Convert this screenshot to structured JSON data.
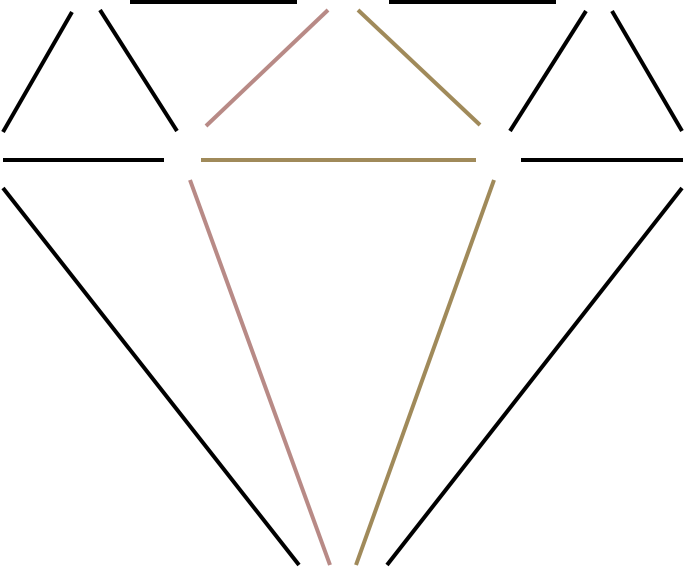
{
  "figure": {
    "subject": "diamond-gem-outline",
    "colors": {
      "outline": "#000000",
      "facet_left": "#b88a86",
      "facet_right": "#a08a5a"
    }
  }
}
